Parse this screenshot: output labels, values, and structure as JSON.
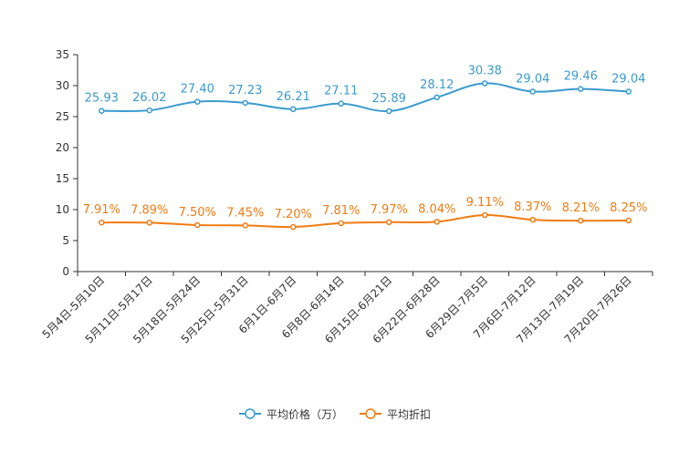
{
  "chart_data": {
    "type": "line",
    "categories": [
      "5月4日-5月10日",
      "5月11日-5月17日",
      "5月18日-5月24日",
      "5月25日-5月31日",
      "6月1日-6月7日",
      "6月8日-6月14日",
      "6月15日-6月21日",
      "6月22日-6月28日",
      "6月29日-7月5日",
      "7月6日-7月12日",
      "7月13日-7月19日",
      "7月20日-7月26日"
    ],
    "ylim": [
      0,
      35
    ],
    "yticks": [
      0,
      5,
      10,
      15,
      20,
      25,
      30,
      35
    ],
    "ytick_labels": [
      "0",
      "5",
      "10",
      "15",
      "20",
      "25",
      "30",
      "35"
    ],
    "series": [
      {
        "name": "平均价格（万）",
        "color": "#3a9bd0",
        "values": [
          25.93,
          26.02,
          27.4,
          27.23,
          26.21,
          27.11,
          25.89,
          28.12,
          30.38,
          29.04,
          29.46,
          29.04
        ],
        "labels": [
          "25.93",
          "26.02",
          "27.40",
          "27.23",
          "26.21",
          "27.11",
          "25.89",
          "28.12",
          "30.38",
          "29.04",
          "29.46",
          "29.04"
        ]
      },
      {
        "name": "平均折扣",
        "color": "#f07b12",
        "values": [
          7.91,
          7.89,
          7.5,
          7.45,
          7.2,
          7.81,
          7.97,
          8.04,
          9.11,
          8.37,
          8.21,
          8.25
        ],
        "labels": [
          "7.91%",
          "7.89%",
          "7.50%",
          "7.45%",
          "7.20%",
          "7.81%",
          "7.97%",
          "8.04%",
          "9.11%",
          "8.37%",
          "8.21%",
          "8.25%"
        ]
      }
    ]
  }
}
